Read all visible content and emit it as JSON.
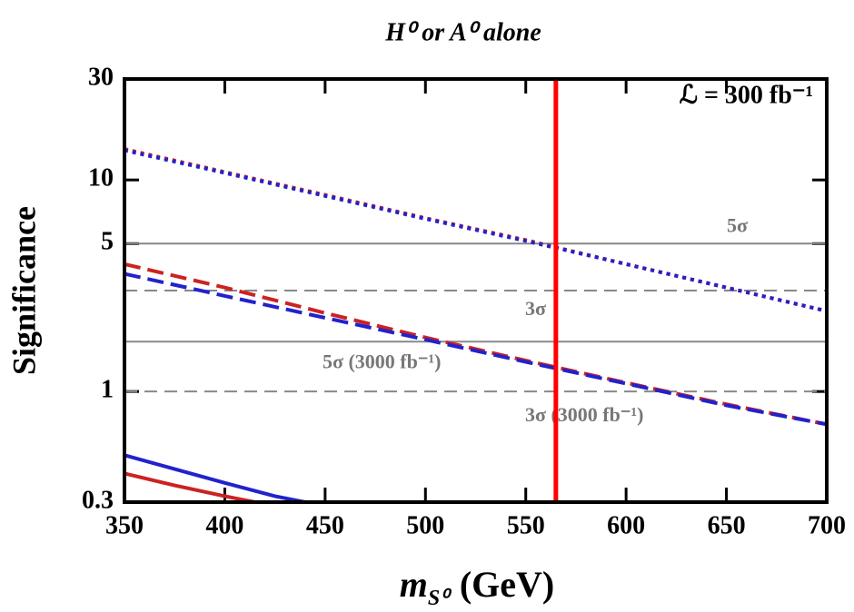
{
  "chart_data": {
    "type": "line",
    "title": "H⁰ or A⁰ alone",
    "y_label": "Significance",
    "x_label": {
      "symbol": "m",
      "subscript": "S⁰",
      "unit": "(GeV)"
    },
    "annotation": "ℒ = 300 fb⁻¹",
    "xlim": [
      350,
      700
    ],
    "ylim": [
      0.3,
      30
    ],
    "log_y": true,
    "xticks": [
      350,
      400,
      450,
      500,
      550,
      600,
      650,
      700
    ],
    "yticks": [
      0.3,
      1,
      5,
      10,
      30
    ],
    "series": [
      {
        "color": "#cc2222",
        "style": "dotted",
        "x": [
          350,
          400,
          450,
          500,
          550,
          600,
          650,
          700
        ],
        "values": [
          14,
          10.9,
          8.5,
          6.6,
          5.2,
          4.0,
          3.1,
          2.4
        ]
      },
      {
        "color": "#2222cc",
        "style": "dotted",
        "x": [
          350,
          400,
          450,
          500,
          550,
          600,
          650,
          700
        ],
        "values": [
          13.8,
          10.8,
          8.4,
          6.55,
          5.15,
          4.0,
          3.1,
          2.4
        ]
      },
      {
        "color": "#cc2222",
        "style": "dashed",
        "x": [
          350,
          400,
          450,
          500,
          550,
          600,
          650,
          700
        ],
        "values": [
          4.0,
          3.1,
          2.35,
          1.8,
          1.4,
          1.1,
          0.87,
          0.7
        ]
      },
      {
        "color": "#2222cc",
        "style": "dashed",
        "x": [
          350,
          400,
          450,
          500,
          550,
          600,
          650,
          700
        ],
        "values": [
          3.6,
          2.83,
          2.23,
          1.76,
          1.38,
          1.09,
          0.86,
          0.7
        ]
      },
      {
        "color": "#2222cc",
        "style": "solid",
        "x": [
          350,
          375,
          400,
          425,
          440
        ],
        "values": [
          0.5,
          0.43,
          0.37,
          0.32,
          0.3
        ]
      },
      {
        "color": "#cc2222",
        "style": "solid",
        "x": [
          350,
          375,
          400,
          415
        ],
        "values": [
          0.41,
          0.36,
          0.32,
          0.3
        ]
      }
    ],
    "reference_lines": [
      {
        "value": 5,
        "style": "solid",
        "label": "5σ"
      },
      {
        "value": 3,
        "style": "dashed",
        "label": "3σ"
      },
      {
        "value": 1.72,
        "style": "solid",
        "label": "5σ (3000 fb⁻¹)"
      },
      {
        "value": 1,
        "style": "dashed",
        "label": "3σ (3000 fb⁻¹)"
      }
    ],
    "vertical_lines": [
      {
        "value": 565,
        "color": "#ff0000"
      }
    ]
  }
}
